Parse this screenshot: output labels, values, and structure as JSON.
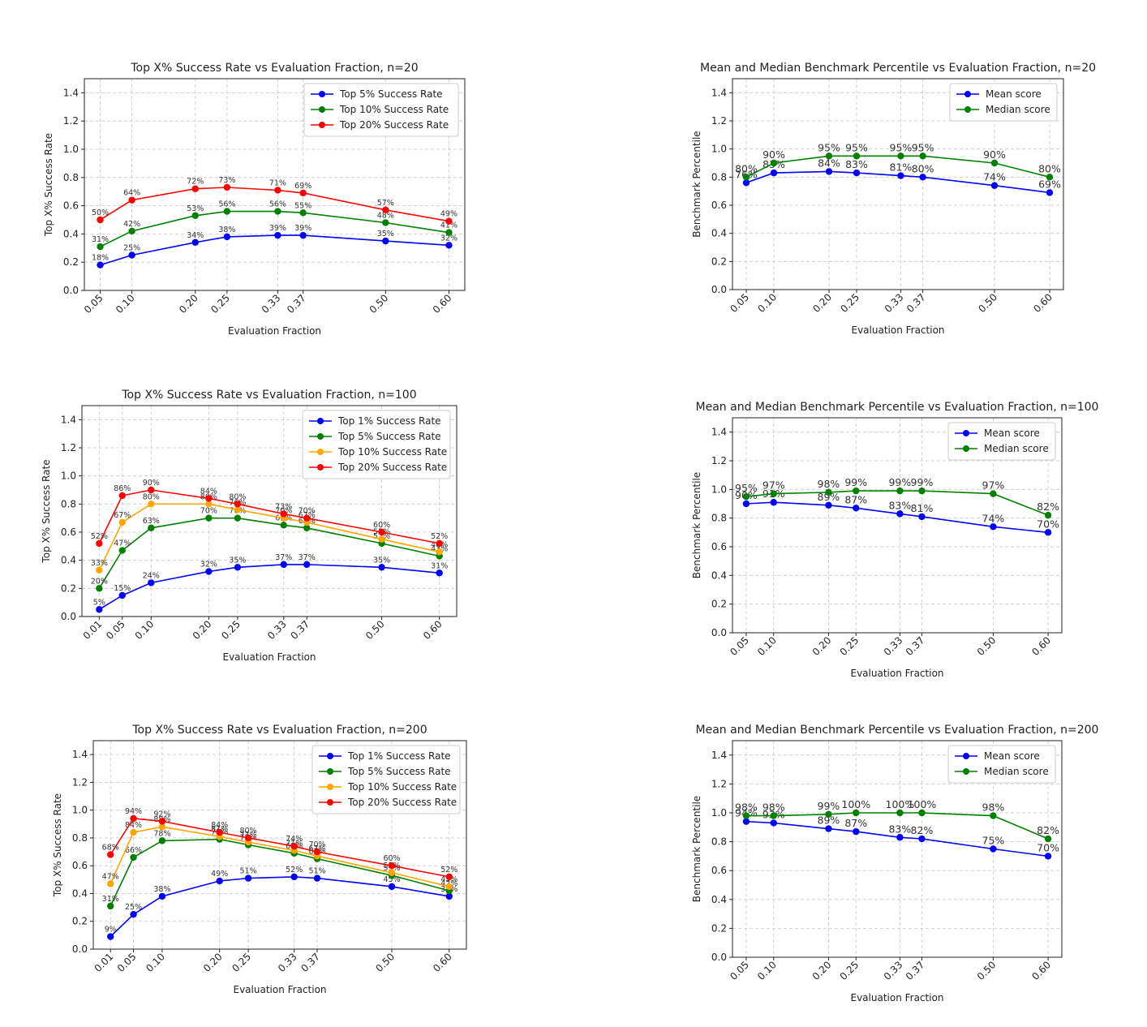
{
  "chart_data": [
    {
      "type": "line",
      "title": "Top X% Success Rate vs Evaluation Fraction, n=20",
      "xlabel": "Evaluation Fraction",
      "ylabel": "Top X% Success Rate",
      "xlim": [
        0.025,
        0.625
      ],
      "ylim": [
        0,
        1.5
      ],
      "yticks": [
        "0.0",
        "0.2",
        "0.4",
        "0.6",
        "0.8",
        "1.0",
        "1.2",
        "1.4"
      ],
      "x": [
        0.05,
        0.1,
        0.2,
        0.25,
        0.33,
        0.37,
        0.5,
        0.6
      ],
      "xticklabels": [
        "0.05",
        "0.10",
        "0.20",
        "0.25",
        "0.33",
        "0.37",
        "0.50",
        "0.60"
      ],
      "legend": "top-right",
      "grid": true,
      "series": [
        {
          "name": "Top 5% Success Rate",
          "color": "#0000ff",
          "values": [
            0.18,
            0.25,
            0.34,
            0.38,
            0.39,
            0.39,
            0.35,
            0.32
          ],
          "labels": [
            "18%",
            "25%",
            "34%",
            "38%",
            "39%",
            "39%",
            "35%",
            "32%"
          ]
        },
        {
          "name": "Top 10% Success Rate",
          "color": "#008000",
          "values": [
            0.31,
            0.42,
            0.53,
            0.56,
            0.56,
            0.55,
            0.48,
            0.41
          ],
          "labels": [
            "31%",
            "42%",
            "53%",
            "56%",
            "56%",
            "55%",
            "48%",
            "41%"
          ]
        },
        {
          "name": "Top 20% Success Rate",
          "color": "#ff0000",
          "values": [
            0.5,
            0.64,
            0.72,
            0.73,
            0.71,
            0.69,
            0.57,
            0.49
          ],
          "labels": [
            "50%",
            "64%",
            "72%",
            "73%",
            "71%",
            "69%",
            "57%",
            "49%"
          ]
        }
      ]
    },
    {
      "type": "line",
      "title": "Mean and Median Benchmark Percentile vs Evaluation Fraction, n=20",
      "xlabel": "Evaluation Fraction",
      "ylabel": "Benchmark Percentile",
      "xlim": [
        0.025,
        0.625
      ],
      "ylim": [
        0,
        1.5
      ],
      "yticks": [
        "0.0",
        "0.2",
        "0.4",
        "0.6",
        "0.8",
        "1.0",
        "1.2",
        "1.4"
      ],
      "x": [
        0.05,
        0.1,
        0.2,
        0.25,
        0.33,
        0.37,
        0.5,
        0.6
      ],
      "xticklabels": [
        "0.05",
        "0.10",
        "0.20",
        "0.25",
        "0.33",
        "0.37",
        "0.50",
        "0.60"
      ],
      "legend": "top-right",
      "grid": true,
      "series": [
        {
          "name": "Mean score",
          "color": "#0000ff",
          "values": [
            0.76,
            0.83,
            0.84,
            0.83,
            0.81,
            0.8,
            0.74,
            0.69
          ],
          "labels": [
            "76%",
            "83%",
            "84%",
            "83%",
            "81%",
            "80%",
            "74%",
            "69%"
          ]
        },
        {
          "name": "Median score",
          "color": "#008000",
          "values": [
            0.8,
            0.9,
            0.95,
            0.95,
            0.95,
            0.95,
            0.9,
            0.8
          ],
          "labels": [
            "80%",
            "90%",
            "95%",
            "95%",
            "95%",
            "95%",
            "90%",
            "80%"
          ]
        }
      ]
    },
    {
      "type": "line",
      "title": "Top X% Success Rate vs Evaluation Fraction, n=100",
      "xlabel": "Evaluation Fraction",
      "ylabel": "Top X% Success Rate",
      "xlim": [
        -0.02,
        0.63
      ],
      "ylim": [
        0,
        1.5
      ],
      "yticks": [
        "0.0",
        "0.2",
        "0.4",
        "0.6",
        "0.8",
        "1.0",
        "1.2",
        "1.4"
      ],
      "x": [
        0.01,
        0.05,
        0.1,
        0.2,
        0.25,
        0.33,
        0.37,
        0.5,
        0.6
      ],
      "xticklabels": [
        "0.01",
        "0.05",
        "0.10",
        "0.20",
        "0.25",
        "0.33",
        "0.37",
        "0.50",
        "0.60"
      ],
      "legend": "top-right",
      "grid": true,
      "series": [
        {
          "name": "Top 1% Success Rate",
          "color": "#0000ff",
          "values": [
            0.05,
            0.15,
            0.24,
            0.32,
            0.35,
            0.37,
            0.37,
            0.35,
            0.31
          ],
          "labels": [
            "5%",
            "15%",
            "24%",
            "32%",
            "35%",
            "37%",
            "37%",
            "35%",
            "31%"
          ]
        },
        {
          "name": "Top 5% Success Rate",
          "color": "#008000",
          "values": [
            0.2,
            0.47,
            0.63,
            0.7,
            0.7,
            0.65,
            0.63,
            0.52,
            0.43
          ],
          "labels": [
            "20%",
            "47%",
            "63%",
            "70%",
            "70%",
            "65%",
            "63%",
            "52%",
            "43%"
          ]
        },
        {
          "name": "Top 10% Success Rate",
          "color": "#ffa500",
          "values": [
            0.33,
            0.67,
            0.8,
            0.8,
            0.76,
            0.7,
            0.67,
            0.55,
            0.46
          ],
          "labels": [
            "33%",
            "67%",
            "80%",
            "80%",
            "76%",
            "70%",
            "67%",
            "55%",
            "46%"
          ]
        },
        {
          "name": "Top 20% Success Rate",
          "color": "#ff0000",
          "values": [
            0.52,
            0.86,
            0.9,
            0.84,
            0.8,
            0.73,
            0.7,
            0.6,
            0.52
          ],
          "labels": [
            "52%",
            "86%",
            "90%",
            "84%",
            "80%",
            "73%",
            "70%",
            "60%",
            "52%"
          ]
        }
      ]
    },
    {
      "type": "line",
      "title": "Mean and Median Benchmark Percentile vs Evaluation Fraction, n=100",
      "xlabel": "Evaluation Fraction",
      "ylabel": "Benchmark Percentile",
      "xlim": [
        0.025,
        0.625
      ],
      "ylim": [
        0,
        1.5
      ],
      "yticks": [
        "0.0",
        "0.2",
        "0.4",
        "0.6",
        "0.8",
        "1.0",
        "1.2",
        "1.4"
      ],
      "x": [
        0.05,
        0.1,
        0.2,
        0.25,
        0.33,
        0.37,
        0.5,
        0.6
      ],
      "xticklabels": [
        "0.05",
        "0.10",
        "0.20",
        "0.25",
        "0.33",
        "0.37",
        "0.50",
        "0.60"
      ],
      "legend": "top-right",
      "grid": true,
      "series": [
        {
          "name": "Mean score",
          "color": "#0000ff",
          "values": [
            0.9,
            0.91,
            0.89,
            0.87,
            0.83,
            0.81,
            0.74,
            0.7
          ],
          "labels": [
            "90%",
            "91%",
            "89%",
            "87%",
            "83%",
            "81%",
            "74%",
            "70%"
          ]
        },
        {
          "name": "Median score",
          "color": "#008000",
          "values": [
            0.95,
            0.97,
            0.98,
            0.99,
            0.99,
            0.99,
            0.97,
            0.82
          ],
          "labels": [
            "95%",
            "97%",
            "98%",
            "99%",
            "99%",
            "99%",
            "97%",
            "82%"
          ]
        }
      ]
    },
    {
      "type": "line",
      "title": "Top X% Success Rate vs Evaluation Fraction, n=200",
      "xlabel": "Evaluation Fraction",
      "ylabel": "Top X% Success Rate",
      "xlim": [
        -0.02,
        0.63
      ],
      "ylim": [
        0,
        1.5
      ],
      "yticks": [
        "0.0",
        "0.2",
        "0.4",
        "0.6",
        "0.8",
        "1.0",
        "1.2",
        "1.4"
      ],
      "x": [
        0.01,
        0.05,
        0.1,
        0.2,
        0.25,
        0.33,
        0.37,
        0.5,
        0.6
      ],
      "xticklabels": [
        "0.01",
        "0.05",
        "0.10",
        "0.20",
        "0.25",
        "0.33",
        "0.37",
        "0.50",
        "0.60"
      ],
      "legend": "top-right",
      "grid": true,
      "series": [
        {
          "name": "Top 1% Success Rate",
          "color": "#0000ff",
          "values": [
            0.09,
            0.25,
            0.38,
            0.49,
            0.51,
            0.52,
            0.51,
            0.45,
            0.38
          ],
          "labels": [
            "9%",
            "25%",
            "38%",
            "49%",
            "51%",
            "52%",
            "51%",
            "45%",
            "38%"
          ]
        },
        {
          "name": "Top 5% Success Rate",
          "color": "#008000",
          "values": [
            0.31,
            0.66,
            0.78,
            0.79,
            0.75,
            0.69,
            0.65,
            0.53,
            0.42
          ],
          "labels": [
            "31%",
            "66%",
            "78%",
            "79%",
            "75%",
            "69%",
            "65%",
            "53%",
            "42%"
          ]
        },
        {
          "name": "Top 10% Success Rate",
          "color": "#ffa500",
          "values": [
            0.47,
            0.84,
            0.88,
            0.81,
            0.77,
            0.71,
            0.67,
            0.55,
            0.45
          ],
          "labels": [
            "47%",
            "84%",
            "88%",
            "81%",
            "77%",
            "71%",
            "67%",
            "55%",
            "45%"
          ]
        },
        {
          "name": "Top 20% Success Rate",
          "color": "#ff0000",
          "values": [
            0.68,
            0.94,
            0.92,
            0.84,
            0.8,
            0.74,
            0.7,
            0.6,
            0.52
          ],
          "labels": [
            "68%",
            "94%",
            "92%",
            "84%",
            "80%",
            "74%",
            "70%",
            "60%",
            "52%"
          ]
        }
      ]
    },
    {
      "type": "line",
      "title": "Mean and Median Benchmark Percentile vs Evaluation Fraction, n=200",
      "xlabel": "Evaluation Fraction",
      "ylabel": "Benchmark Percentile",
      "xlim": [
        0.025,
        0.625
      ],
      "ylim": [
        0,
        1.5
      ],
      "yticks": [
        "0.0",
        "0.2",
        "0.4",
        "0.6",
        "0.8",
        "1.0",
        "1.2",
        "1.4"
      ],
      "x": [
        0.05,
        0.1,
        0.2,
        0.25,
        0.33,
        0.37,
        0.5,
        0.6
      ],
      "xticklabels": [
        "0.05",
        "0.10",
        "0.20",
        "0.25",
        "0.33",
        "0.37",
        "0.50",
        "0.60"
      ],
      "legend": "top-right",
      "grid": true,
      "series": [
        {
          "name": "Mean score",
          "color": "#0000ff",
          "values": [
            0.94,
            0.93,
            0.89,
            0.87,
            0.83,
            0.82,
            0.75,
            0.7
          ],
          "labels": [
            "94%",
            "93%",
            "89%",
            "87%",
            "83%",
            "82%",
            "75%",
            "70%"
          ]
        },
        {
          "name": "Median score",
          "color": "#008000",
          "values": [
            0.98,
            0.98,
            0.99,
            1.0,
            1.0,
            1.0,
            0.98,
            0.82
          ],
          "labels": [
            "98%",
            "98%",
            "99%",
            "100%",
            "100%",
            "100%",
            "98%",
            "82%"
          ]
        }
      ]
    }
  ]
}
